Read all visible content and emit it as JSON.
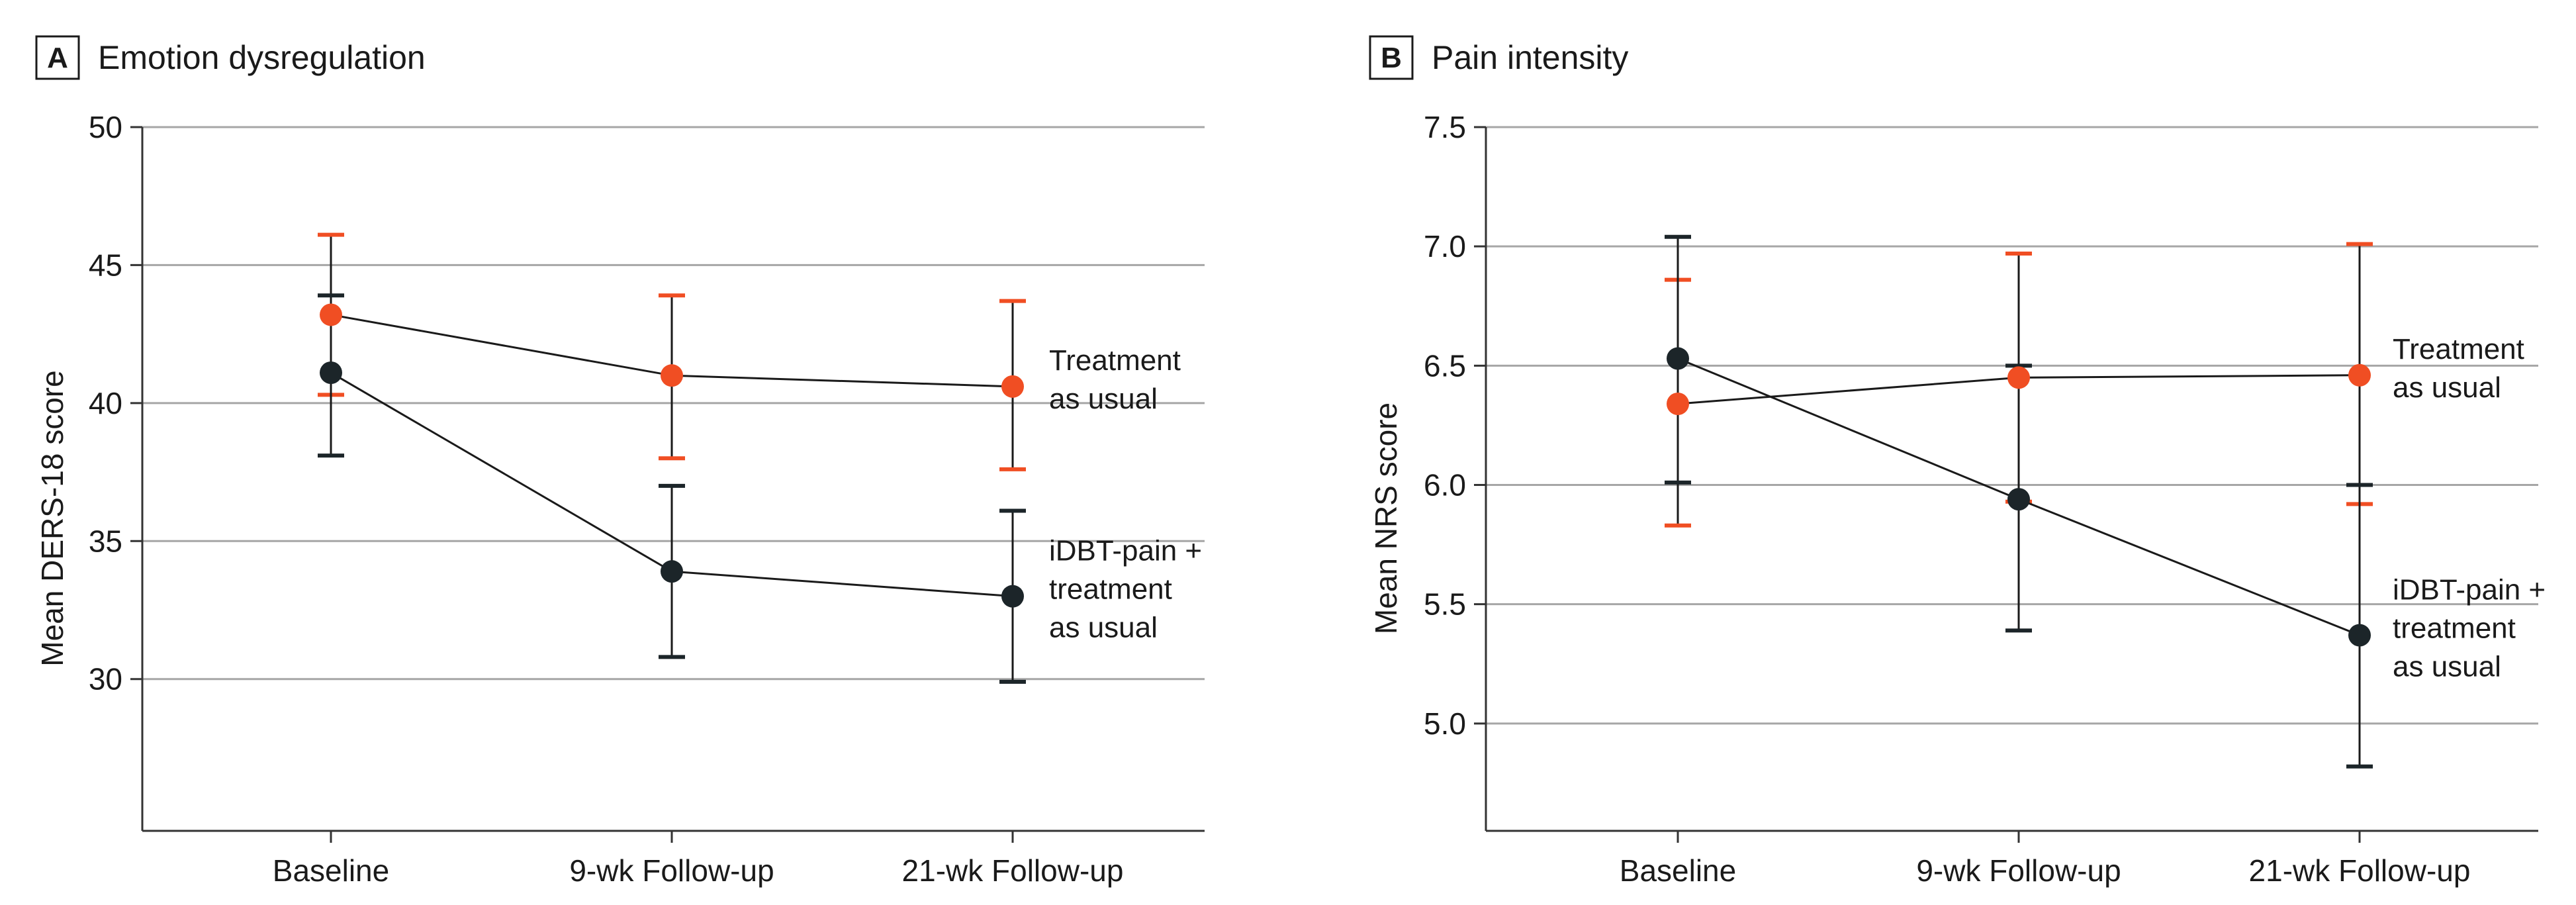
{
  "chart_data": [
    {
      "type": "line",
      "panel": "A",
      "title": "Emotion dysregulation",
      "xlabel": "",
      "ylabel": "Mean DERS-18 score",
      "ylim": [
        24.5,
        50
      ],
      "yticks": [
        30,
        35,
        40,
        45,
        50
      ],
      "ytick_labels": [
        "30",
        "35",
        "40",
        "45",
        "50"
      ],
      "categories": [
        "Baseline",
        "9-wk Follow-up",
        "21-wk Follow-up"
      ],
      "grid": "horizontal",
      "series": [
        {
          "name": "Treatment as usual",
          "label_lines": [
            "Treatment",
            "as usual"
          ],
          "color": "#f04e23",
          "values": [
            43.2,
            41.0,
            40.6
          ],
          "lower": [
            40.3,
            38.0,
            37.6
          ],
          "upper": [
            46.1,
            43.9,
            43.7
          ]
        },
        {
          "name": "iDBT-pain + treatment as usual",
          "label_lines": [
            "iDBT-pain +",
            "treatment",
            "as usual"
          ],
          "color": "#1c2529",
          "values": [
            41.1,
            33.9,
            33.0
          ],
          "lower": [
            38.1,
            30.8,
            29.9
          ],
          "upper": [
            43.9,
            37.0,
            36.1
          ]
        }
      ]
    },
    {
      "type": "line",
      "panel": "B",
      "title": "Pain intensity",
      "xlabel": "",
      "ylabel": "Mean NRS score",
      "ylim": [
        4.55,
        7.5
      ],
      "yticks": [
        5.0,
        5.5,
        6.0,
        6.5,
        7.0,
        7.5
      ],
      "ytick_labels": [
        "5.0",
        "5.5",
        "6.0",
        "6.5",
        "7.0",
        "7.5"
      ],
      "categories": [
        "Baseline",
        "9-wk Follow-up",
        "21-wk Follow-up"
      ],
      "grid": "horizontal",
      "series": [
        {
          "name": "Treatment as usual",
          "label_lines": [
            "Treatment",
            "as usual"
          ],
          "color": "#f04e23",
          "values": [
            6.34,
            6.45,
            6.46
          ],
          "lower": [
            5.83,
            5.93,
            5.92
          ],
          "upper": [
            6.86,
            6.97,
            7.01
          ]
        },
        {
          "name": "iDBT-pain + treatment as usual",
          "label_lines": [
            "iDBT-pain +",
            "treatment",
            "as usual"
          ],
          "color": "#1c2529",
          "values": [
            6.53,
            5.94,
            5.37
          ],
          "lower": [
            6.01,
            5.39,
            4.82
          ],
          "upper": [
            7.04,
            6.5,
            6.0
          ]
        }
      ]
    }
  ]
}
